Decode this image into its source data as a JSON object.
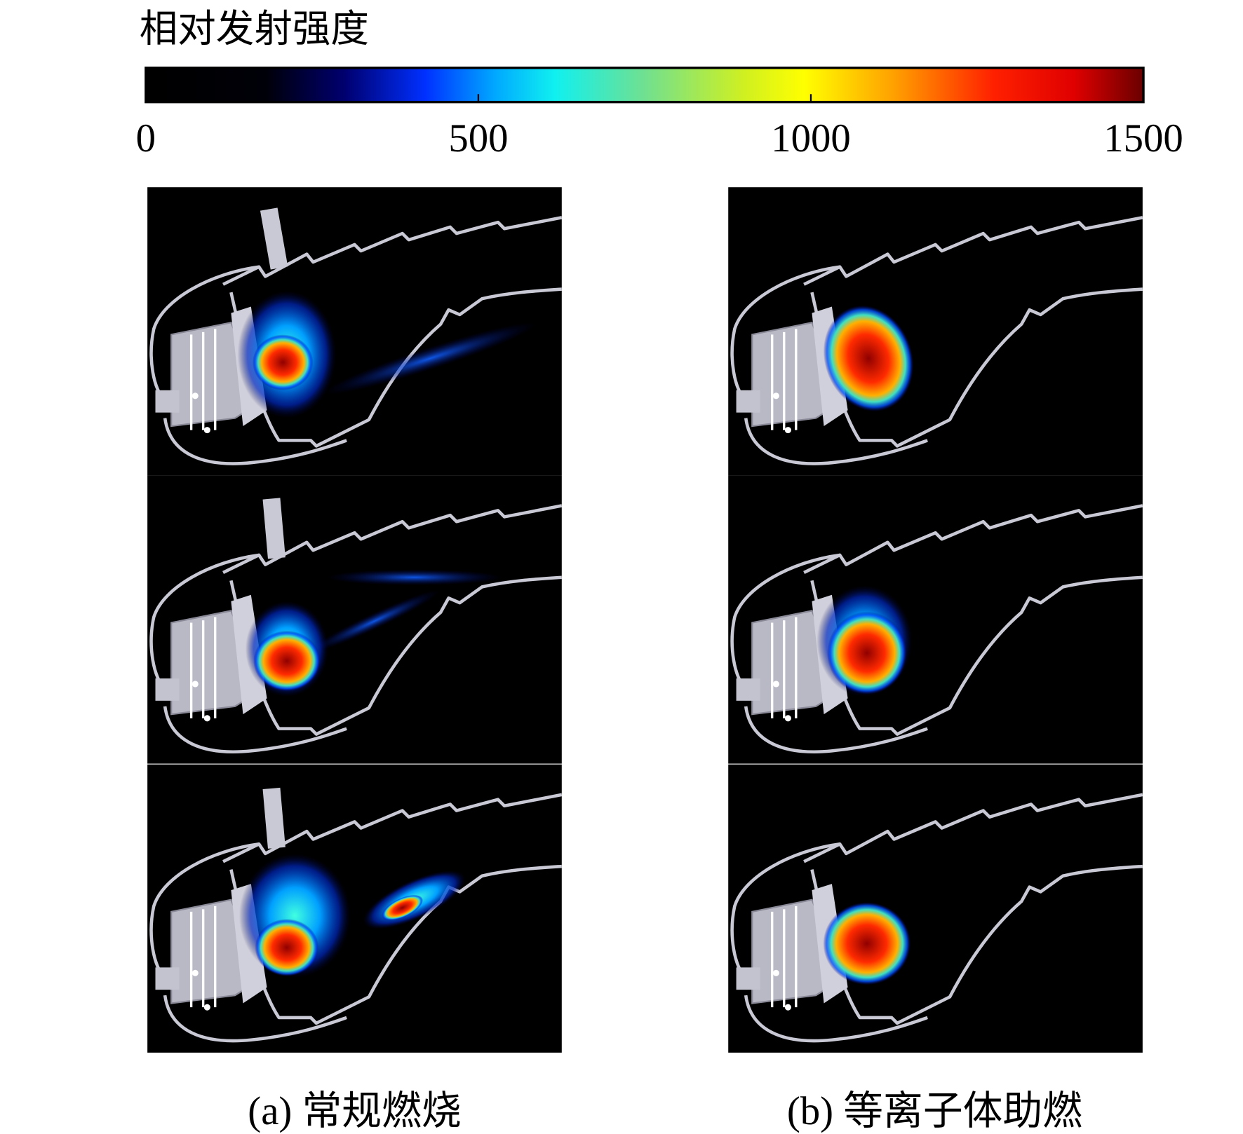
{
  "colorbar": {
    "title": "相对发射强度",
    "lim": [
      0,
      1500
    ],
    "ticks": [
      0,
      500,
      1000,
      1500
    ]
  },
  "panels": [
    {
      "label": "(a) 常规燃烧"
    },
    {
      "label": "(b) 等离子体助燃"
    }
  ]
}
